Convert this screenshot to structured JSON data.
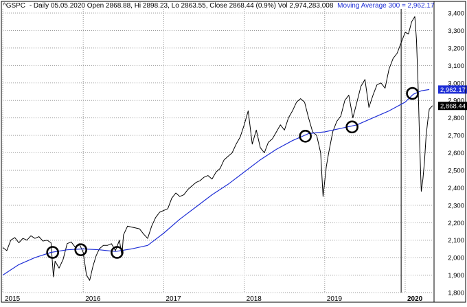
{
  "header": {
    "symbol": "^GSPC",
    "summary": "- Daily 05.05.2020 Open 2868.88, Hi 2898.23, Lo 2863.55, Close 2868.44 (0.9%) Vol 2,974,283,008",
    "ma_text": "Moving Average 300 = 2,962.17"
  },
  "colors": {
    "price": "#000000",
    "moving_average": "#1f2fd6",
    "ma_label_bg": "#1f2fd6",
    "close_label_bg": "#000000",
    "grid": "#9a9a9a",
    "markers": "#000000"
  },
  "chart_data": {
    "type": "line",
    "title": "^GSPC - Daily 05.05.2020",
    "ylim": [
      1800,
      3400
    ],
    "yticks": [
      1800,
      1900,
      2000,
      2100,
      2200,
      2300,
      2400,
      2500,
      2600,
      2700,
      2800,
      2900,
      3000,
      3100,
      3200,
      3300,
      3400
    ],
    "ytick_labels": [
      "1,800",
      "1,900",
      "2,000",
      "2,100",
      "2,200",
      "2,300",
      "2,400",
      "2,500",
      "2,600",
      "2,700",
      "2,800",
      "2,900",
      "3,000",
      "3,100",
      "3,200",
      "3,300",
      "3,400"
    ],
    "xlim": [
      2015.0,
      2020.35
    ],
    "xticks": [
      2015,
      2016,
      2017,
      2018,
      2019,
      2020
    ],
    "xtick_labels": [
      "2015",
      "2016",
      "2017",
      "2018",
      "2019",
      "2020"
    ],
    "grid": true,
    "series": [
      {
        "name": "^GSPC",
        "x": [
          2015.0,
          2015.05,
          2015.1,
          2015.15,
          2015.2,
          2015.25,
          2015.3,
          2015.35,
          2015.4,
          2015.45,
          2015.5,
          2015.55,
          2015.6,
          2015.63,
          2015.65,
          2015.7,
          2015.75,
          2015.8,
          2015.85,
          2015.9,
          2015.95,
          2016.0,
          2016.04,
          2016.08,
          2016.12,
          2016.16,
          2016.2,
          2016.25,
          2016.3,
          2016.35,
          2016.4,
          2016.45,
          2016.48,
          2016.5,
          2016.55,
          2016.6,
          2016.65,
          2016.7,
          2016.75,
          2016.8,
          2016.85,
          2016.9,
          2016.95,
          2017.0,
          2017.05,
          2017.1,
          2017.15,
          2017.2,
          2017.25,
          2017.3,
          2017.35,
          2017.4,
          2017.45,
          2017.5,
          2017.55,
          2017.6,
          2017.65,
          2017.7,
          2017.75,
          2017.8,
          2017.85,
          2017.9,
          2017.95,
          2018.0,
          2018.05,
          2018.1,
          2018.15,
          2018.2,
          2018.25,
          2018.3,
          2018.35,
          2018.4,
          2018.45,
          2018.5,
          2018.55,
          2018.6,
          2018.65,
          2018.7,
          2018.75,
          2018.8,
          2018.85,
          2018.9,
          2018.95,
          2018.98,
          2019.02,
          2019.05,
          2019.1,
          2019.15,
          2019.2,
          2019.25,
          2019.3,
          2019.35,
          2019.4,
          2019.45,
          2019.5,
          2019.55,
          2019.6,
          2019.65,
          2019.7,
          2019.75,
          2019.8,
          2019.85,
          2019.9,
          2019.95,
          2020.0,
          2020.04,
          2020.08,
          2020.12,
          2020.14,
          2020.16,
          2020.18,
          2020.2,
          2020.22,
          2020.24,
          2020.26,
          2020.28,
          2020.3,
          2020.32,
          2020.34
        ],
        "y": [
          2058,
          2040,
          2100,
          2115,
          2085,
          2110,
          2100,
          2125,
          2110,
          2120,
          2095,
          2100,
          2085,
          1890,
          1980,
          1940,
          1990,
          2080,
          2090,
          2060,
          2080,
          2030,
          1900,
          1870,
          1950,
          2010,
          2050,
          2070,
          2070,
          2080,
          2040,
          2100,
          2010,
          2130,
          2180,
          2175,
          2170,
          2165,
          2135,
          2110,
          2180,
          2230,
          2260,
          2270,
          2280,
          2340,
          2370,
          2350,
          2360,
          2390,
          2410,
          2430,
          2440,
          2460,
          2470,
          2450,
          2490,
          2510,
          2560,
          2580,
          2600,
          2650,
          2690,
          2760,
          2840,
          2650,
          2730,
          2630,
          2600,
          2660,
          2680,
          2720,
          2760,
          2730,
          2800,
          2840,
          2890,
          2910,
          2890,
          2800,
          2720,
          2700,
          2600,
          2350,
          2520,
          2600,
          2720,
          2780,
          2810,
          2900,
          2930,
          2800,
          2890,
          2980,
          3020,
          2860,
          2930,
          2990,
          3000,
          2970,
          3080,
          3140,
          3170,
          3230,
          3290,
          3280,
          3350,
          3380,
          3250,
          3000,
          2650,
          2380,
          2450,
          2550,
          2700,
          2780,
          2850,
          2860,
          2870
        ]
      },
      {
        "name": "Moving Average 300",
        "x": [
          2015.0,
          2015.2,
          2015.4,
          2015.6,
          2015.8,
          2016.0,
          2016.2,
          2016.4,
          2016.6,
          2016.8,
          2017.0,
          2017.2,
          2017.4,
          2017.6,
          2017.8,
          2018.0,
          2018.2,
          2018.4,
          2018.6,
          2018.8,
          2019.0,
          2019.2,
          2019.4,
          2019.6,
          2019.8,
          2020.0,
          2020.1,
          2020.2,
          2020.3
        ],
        "y": [
          1900,
          1960,
          2000,
          2030,
          2045,
          2050,
          2045,
          2035,
          2050,
          2070,
          2140,
          2220,
          2290,
          2360,
          2420,
          2490,
          2560,
          2620,
          2670,
          2710,
          2720,
          2740,
          2760,
          2800,
          2840,
          2890,
          2935,
          2955,
          2962
        ]
      }
    ],
    "highlight_points": [
      {
        "x": 2015.62,
        "y": 2030
      },
      {
        "x": 2015.97,
        "y": 2045
      },
      {
        "x": 2016.42,
        "y": 2030
      },
      {
        "x": 2018.76,
        "y": 2695
      },
      {
        "x": 2019.34,
        "y": 2748
      },
      {
        "x": 2020.09,
        "y": 2940
      }
    ],
    "annotations": {
      "last_ma_label": "2,962.17",
      "last_ma_value": 2962.17,
      "last_close_label": "2,868.44",
      "last_close_value": 2868.44,
      "event_line_x": 2019.95
    }
  }
}
